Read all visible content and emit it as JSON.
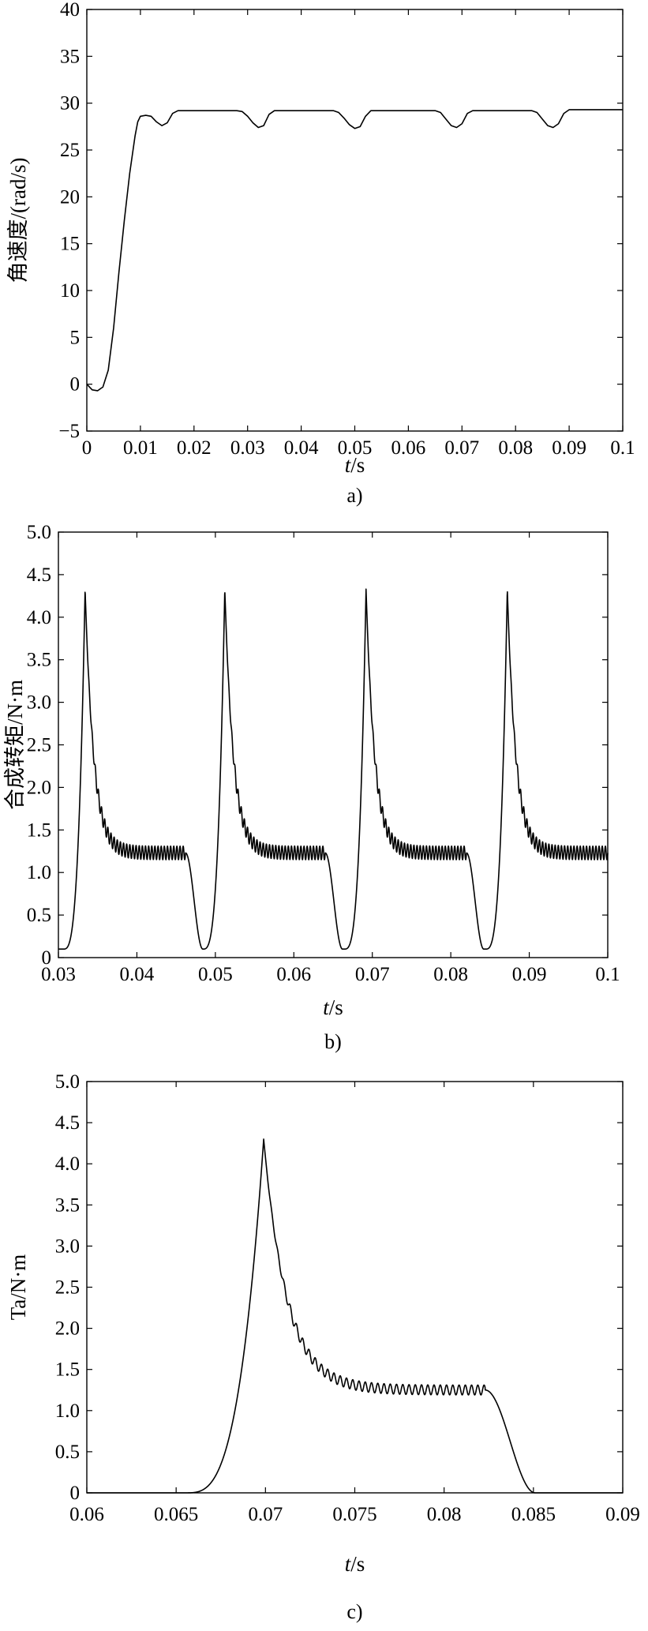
{
  "chart_data": [
    {
      "type": "line",
      "panel": "a",
      "caption": "a)",
      "xlabel_italic": "t",
      "xlabel_rest": "/s",
      "ylabel": "角速度/(rad/s)",
      "xlim": [
        0,
        0.1
      ],
      "ylim": [
        -5,
        40
      ],
      "xticks": [
        0,
        0.01,
        0.02,
        0.03,
        0.04,
        0.05,
        0.06,
        0.07,
        0.08,
        0.09,
        0.1
      ],
      "xtick_labels": [
        "0",
        "0.01",
        "0.02",
        "0.03",
        "0.04",
        "0.05",
        "0.06",
        "0.07",
        "0.08",
        "0.09",
        "0.1"
      ],
      "yticks": [
        -5,
        0,
        5,
        10,
        15,
        20,
        25,
        30,
        35,
        40
      ],
      "ytick_labels": [
        "−5",
        "0",
        "5",
        "10",
        "15",
        "20",
        "25",
        "30",
        "35",
        "40"
      ],
      "grid": false,
      "series": [
        {
          "x": [
            0,
            0.001,
            0.002,
            0.003,
            0.004,
            0.005,
            0.006,
            0.007,
            0.008,
            0.009,
            0.0095,
            0.01,
            0.011,
            0.012,
            0.013,
            0.0135,
            0.014,
            0.015,
            0.016,
            0.017,
            0.018,
            0.028,
            0.029,
            0.03,
            0.031,
            0.032,
            0.033,
            0.034,
            0.035,
            0.036,
            0.046,
            0.047,
            0.048,
            0.049,
            0.05,
            0.051,
            0.052,
            0.053,
            0.054,
            0.065,
            0.066,
            0.067,
            0.068,
            0.069,
            0.07,
            0.071,
            0.072,
            0.083,
            0.084,
            0.085,
            0.086,
            0.087,
            0.088,
            0.089,
            0.09,
            0.1
          ],
          "y": [
            0,
            -0.6,
            -0.7,
            -0.3,
            1.5,
            6,
            12,
            17.5,
            22.5,
            26.5,
            28,
            28.6,
            28.7,
            28.6,
            28,
            27.8,
            27.6,
            27.9,
            28.9,
            29.2,
            29.2,
            29.2,
            29.1,
            28.6,
            27.9,
            27.4,
            27.6,
            28.8,
            29.2,
            29.2,
            29.2,
            29.0,
            28.4,
            27.7,
            27.3,
            27.5,
            28.6,
            29.2,
            29.2,
            29.2,
            29.0,
            28.3,
            27.6,
            27.4,
            27.8,
            28.9,
            29.2,
            29.2,
            29.0,
            28.3,
            27.6,
            27.4,
            27.8,
            28.9,
            29.3,
            29.3
          ]
        }
      ]
    },
    {
      "type": "line",
      "panel": "b",
      "caption": "b)",
      "xlabel_italic": "t",
      "xlabel_rest": "/s",
      "ylabel": "合成转矩/N·m",
      "xlim": [
        0.03,
        0.1
      ],
      "ylim": [
        0,
        5.0
      ],
      "xticks": [
        0.03,
        0.04,
        0.05,
        0.06,
        0.07,
        0.08,
        0.09,
        0.1
      ],
      "xtick_labels": [
        "0.03",
        "0.04",
        "0.05",
        "0.06",
        "0.07",
        "0.08",
        "0.09",
        "0.1"
      ],
      "yticks": [
        0,
        0.5,
        1.0,
        1.5,
        2.0,
        2.5,
        3.0,
        3.5,
        4.0,
        4.5,
        5.0
      ],
      "ytick_labels": [
        "0",
        "0.5",
        "1.0",
        "1.5",
        "2.0",
        "2.5",
        "3.0",
        "3.5",
        "4.0",
        "4.5",
        "5.0"
      ],
      "grid": false,
      "pulse_starts": [
        0.0306,
        0.0484,
        0.0664,
        0.0844
      ],
      "pulse_peak": 4.33,
      "plateau": 1.23,
      "ripple": 0.08,
      "ripple_period": 0.0004,
      "base": 0.1,
      "pulse_rise": 0.0028,
      "pulse_decay": 0.0011,
      "pulse_plateau_end": 0.0156,
      "pulse_fall_end": 0.0178
    },
    {
      "type": "line",
      "panel": "c",
      "caption": "c)",
      "xlabel_italic": "t",
      "xlabel_rest": "/s",
      "ylabel": "Ta/N·m",
      "xlim": [
        0.06,
        0.09
      ],
      "ylim": [
        0,
        5.0
      ],
      "xticks": [
        0.06,
        0.065,
        0.07,
        0.075,
        0.08,
        0.085,
        0.09
      ],
      "xtick_labels": [
        "0.06",
        "0.065",
        "0.07",
        "0.075",
        "0.08",
        "0.085",
        "0.09"
      ],
      "yticks": [
        0,
        0.5,
        1.0,
        1.5,
        2.0,
        2.5,
        3.0,
        3.5,
        4.0,
        4.5,
        5.0
      ],
      "ytick_labels": [
        "0",
        "0.5",
        "1.0",
        "1.5",
        "2.0",
        "2.5",
        "3.0",
        "3.5",
        "4.0",
        "4.5",
        "5.0"
      ],
      "grid": false,
      "pulse_starts": [
        0.0655
      ],
      "pulse_peak": 4.3,
      "plateau": 1.25,
      "ripple": 0.06,
      "ripple_period": 0.00035,
      "base": 0.0,
      "pulse_rise": 0.0044,
      "pulse_decay": 0.0013,
      "pulse_plateau_end": 0.0168,
      "pulse_fall_end": 0.0196
    }
  ]
}
